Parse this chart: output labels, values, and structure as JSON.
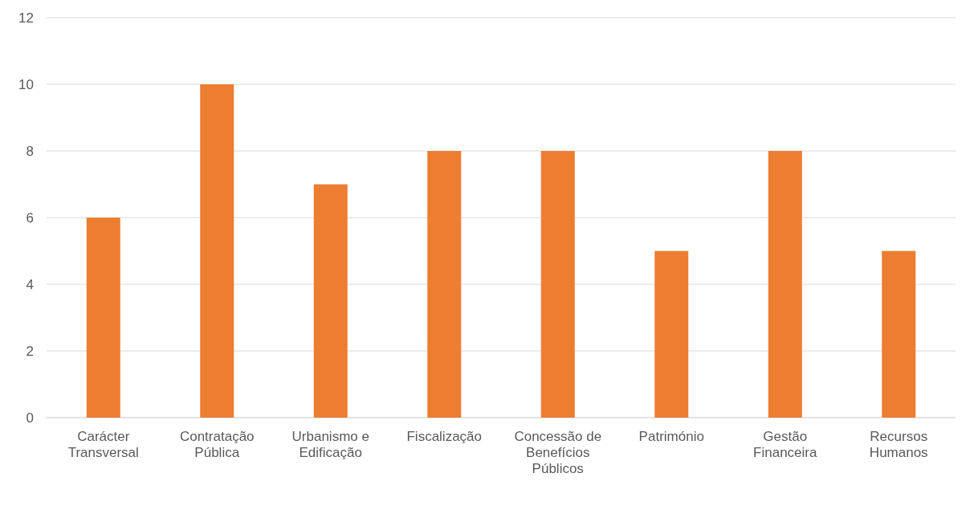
{
  "chart_data": {
    "type": "bar",
    "categories": [
      "Carácter Transversal",
      "Contratação Pública",
      "Urbanismo e Edificação",
      "Fiscalização",
      "Concessão de Benefícios Públicos",
      "Património",
      "Gestão Financeira",
      "Recursos Humanos"
    ],
    "values": [
      6,
      10,
      7,
      8,
      8,
      5,
      8,
      5
    ],
    "color": "#ed7d31",
    "ylim": [
      0,
      12
    ],
    "yticks": [
      0,
      2,
      4,
      6,
      8,
      10,
      12
    ],
    "grid": "y"
  }
}
